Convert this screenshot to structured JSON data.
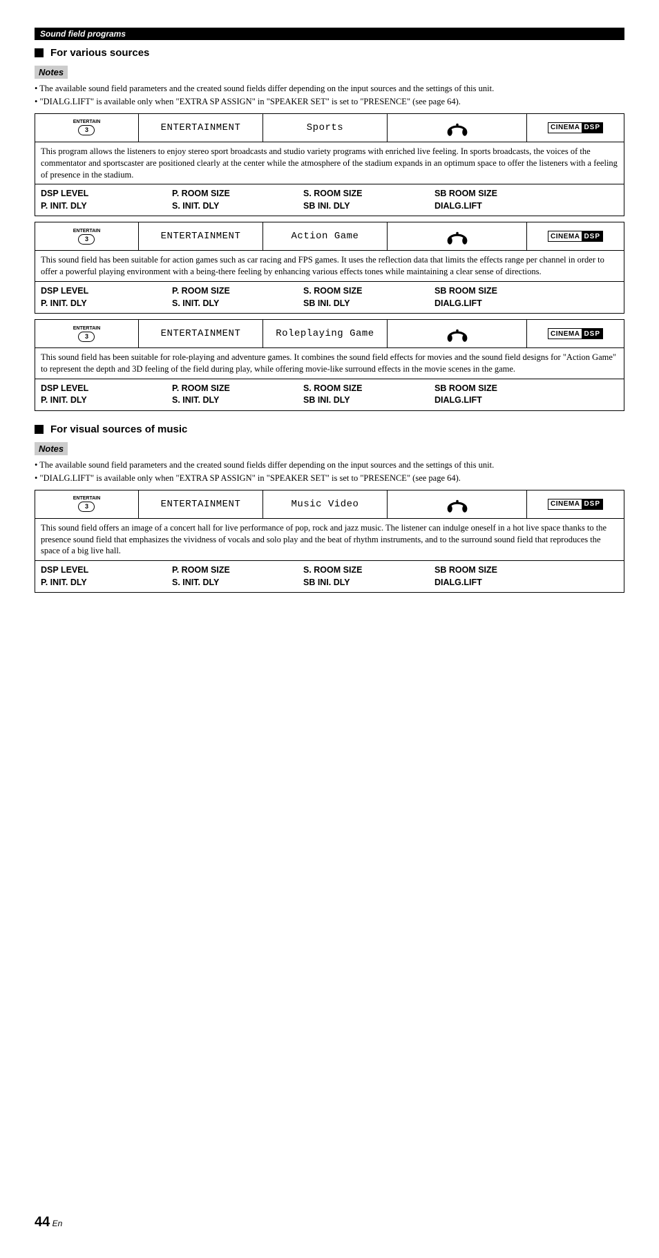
{
  "header_bar": "Sound field programs",
  "section1": {
    "title": "For various sources",
    "notes_label": "Notes",
    "notes": [
      "• The available sound field parameters and the created sound fields differ depending on the input sources and the settings of this unit.",
      "• \"DIALG.LIFT\" is available only when \"EXTRA SP ASSIGN\" in \"SPEAKER SET\" is set to \"PRESENCE\" (see page 64)."
    ],
    "blocks": [
      {
        "icon_label": "ENTERTAIN",
        "icon_num": "3",
        "category": "ENTERTAINMENT",
        "name": "Sports",
        "cinema_left": "CINEMA",
        "cinema_right": "DSP",
        "desc": "This program allows the listeners to enjoy stereo sport broadcasts and studio variety programs with enriched live feeling. In sports broadcasts, the voices of the commentator and sportscaster are positioned clearly at the center while the atmosphere of the stadium expands in an optimum space to offer the listeners with a feeling of presence in the stadium.",
        "params": [
          [
            "DSP LEVEL",
            "P. INIT. DLY"
          ],
          [
            "P. ROOM SIZE",
            "S. INIT. DLY"
          ],
          [
            "S. ROOM SIZE",
            "SB INI. DLY"
          ],
          [
            "SB ROOM SIZE",
            "DIALG.LIFT"
          ]
        ]
      },
      {
        "icon_label": "ENTERTAIN",
        "icon_num": "3",
        "category": "ENTERTAINMENT",
        "name": "Action Game",
        "cinema_left": "CINEMA",
        "cinema_right": "DSP",
        "desc": "This sound field has been suitable for action games such as car racing and FPS games. It uses the reflection data that limits the effects range per channel in order to offer a powerful playing environment with a being-there feeling by enhancing various effects tones while maintaining a clear sense of directions.",
        "params": [
          [
            "DSP LEVEL",
            "P. INIT. DLY"
          ],
          [
            "P. ROOM SIZE",
            "S. INIT. DLY"
          ],
          [
            "S. ROOM SIZE",
            "SB INI. DLY"
          ],
          [
            "SB ROOM SIZE",
            "DIALG.LIFT"
          ]
        ]
      },
      {
        "icon_label": "ENTERTAIN",
        "icon_num": "3",
        "category": "ENTERTAINMENT",
        "name": "Roleplaying Game",
        "cinema_left": "CINEMA",
        "cinema_right": "DSP",
        "desc": "This sound field has been suitable for role-playing and adventure games. It combines the sound field effects for movies and the sound field designs for \"Action Game\" to represent the depth and 3D feeling of the field during play, while offering movie-like surround effects in the movie scenes in the game.",
        "params": [
          [
            "DSP LEVEL",
            "P. INIT. DLY"
          ],
          [
            "P. ROOM SIZE",
            "S. INIT. DLY"
          ],
          [
            "S. ROOM SIZE",
            "SB INI. DLY"
          ],
          [
            "SB ROOM SIZE",
            "DIALG.LIFT"
          ]
        ]
      }
    ]
  },
  "section2": {
    "title": "For visual sources of music",
    "notes_label": "Notes",
    "notes": [
      "• The available sound field parameters and the created sound fields differ depending on the input sources and the settings of this unit.",
      "• \"DIALG.LIFT\" is available only when \"EXTRA SP ASSIGN\" in \"SPEAKER SET\" is set to \"PRESENCE\" (see page 64)."
    ],
    "blocks": [
      {
        "icon_label": "ENTERTAIN",
        "icon_num": "3",
        "category": "ENTERTAINMENT",
        "name": "Music Video",
        "cinema_left": "CINEMA",
        "cinema_right": "DSP",
        "desc": "This sound field offers an image of a concert hall for live performance of pop, rock and jazz music. The listener can indulge oneself in a hot live space thanks to the presence sound field that emphasizes the vividness of vocals and solo play and the beat of rhythm instruments, and to the surround sound field that reproduces the space of a big live hall.",
        "params": [
          [
            "DSP LEVEL",
            "P. INIT. DLY"
          ],
          [
            "P. ROOM SIZE",
            "S. INIT. DLY"
          ],
          [
            "S. ROOM SIZE",
            "SB INI. DLY"
          ],
          [
            "SB ROOM SIZE",
            "DIALG.LIFT"
          ]
        ]
      }
    ]
  },
  "footer": {
    "num": "44",
    "suffix": " En"
  }
}
